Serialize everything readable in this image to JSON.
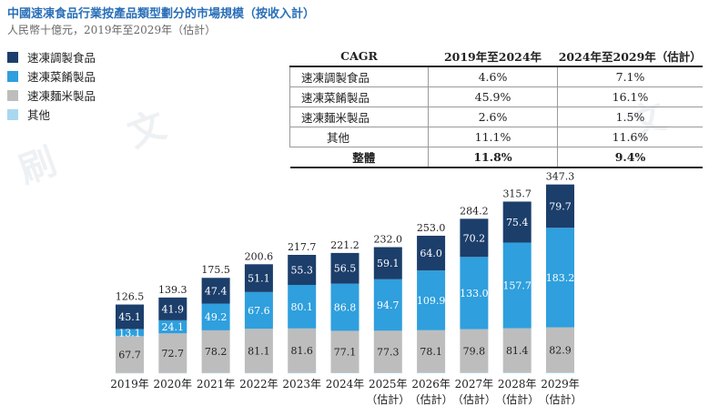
{
  "title": "中國速凍食品行業按產品類型劃分的市場規模（按收入計）",
  "subtitle": "人民幣十億元，2019年至2029年（估計）",
  "colors": {
    "dark": "#1c3e6b",
    "medium": "#2f9fdd",
    "gray": "#bdbdbd",
    "light": "#a8d8f0"
  },
  "legend": [
    {
      "label": "速凍調製食品",
      "color": "#1c3e6b"
    },
    {
      "label": "速凍菜餚製品",
      "color": "#2f9fdd"
    },
    {
      "label": "速凍麵米製品",
      "color": "#bdbdbd"
    },
    {
      "label": "其他",
      "color": "#a8d8f0"
    }
  ],
  "cagr_table": {
    "header": [
      "CAGR",
      "2019年至2024年",
      "2024年至2029年（估計）"
    ],
    "rows": [
      {
        "label": "速凍調製食品",
        "a": "4.6%",
        "b": "7.1%"
      },
      {
        "label": "速凍菜餚製品",
        "a": "45.9%",
        "b": "16.1%"
      },
      {
        "label": "速凍麵米製品",
        "a": "2.6%",
        "b": "1.5%"
      },
      {
        "label": "其他",
        "a": "11.1%",
        "b": "11.6%"
      }
    ],
    "total": {
      "label": "整體",
      "a": "11.8%",
      "b": "9.4%"
    }
  },
  "chart_data": {
    "type": "bar",
    "stacked": true,
    "categories": [
      "2019年",
      "2020年",
      "2021年",
      "2022年",
      "2023年",
      "2024年",
      "2025年",
      "2026年",
      "2027年",
      "2028年",
      "2029年"
    ],
    "category_notes": [
      "",
      "",
      "",
      "",
      "",
      "",
      "（估計）",
      "（估計）",
      "（估計）",
      "（估計）",
      "（估計）"
    ],
    "series": [
      {
        "name": "其他",
        "values": [
          0.5,
          0.6,
          0.7,
          0.7,
          0.8,
          0.9,
          0.9,
          1.0,
          1.2,
          1.3,
          1.5
        ]
      },
      {
        "name": "速凍麵米製品",
        "values": [
          67.7,
          72.7,
          78.2,
          81.1,
          81.6,
          77.1,
          77.3,
          78.1,
          79.8,
          81.4,
          82.9
        ]
      },
      {
        "name": "速凍菜餚製品",
        "values": [
          13.1,
          24.1,
          49.2,
          67.6,
          80.1,
          86.8,
          94.7,
          109.9,
          133.0,
          157.7,
          183.2
        ]
      },
      {
        "name": "速凍調製食品",
        "values": [
          45.1,
          41.9,
          47.4,
          51.1,
          55.3,
          56.5,
          59.1,
          64.0,
          70.2,
          75.4,
          79.7
        ]
      }
    ],
    "totals": [
      126.5,
      139.3,
      175.5,
      200.6,
      217.7,
      221.2,
      232.0,
      253.0,
      284.2,
      315.7,
      347.3
    ]
  }
}
